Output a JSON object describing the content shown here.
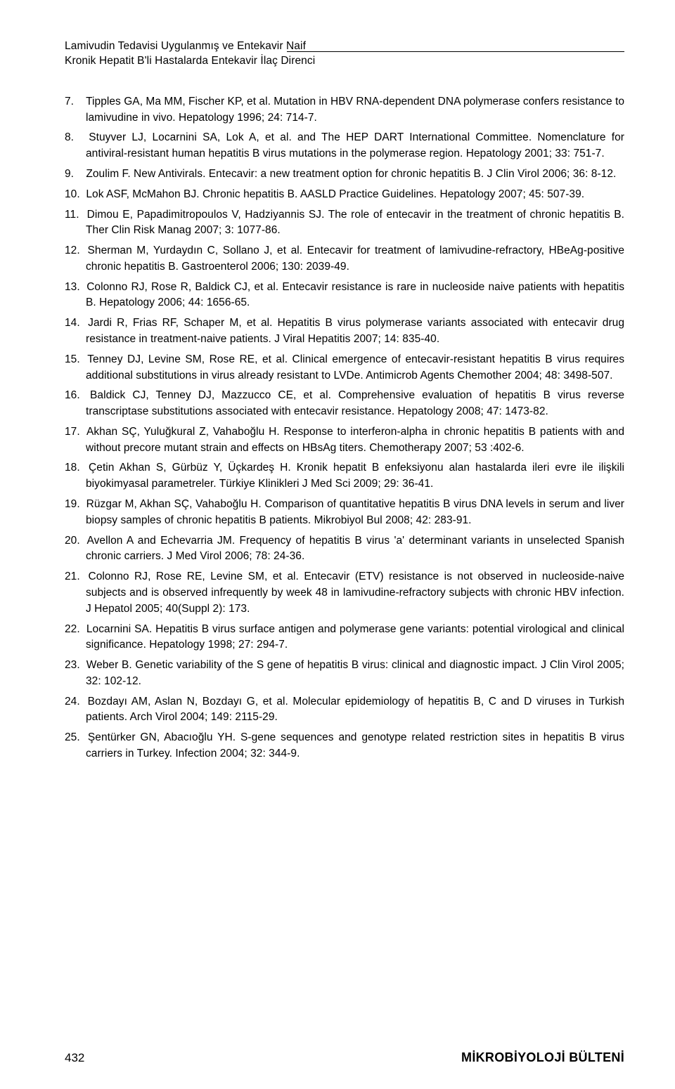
{
  "header": {
    "line1": "Lamivudin Tedavisi Uygulanmış ve Entekavir Naif",
    "line2": "Kronik Hepatit B'li Hastalarda Entekavir İlaç Direnci"
  },
  "refs": [
    {
      "n": "7.",
      "t": "Tipples GA, Ma MM, Fischer KP, et al. Mutation in HBV RNA-dependent DNA polymerase confers resistance to lamivudine in vivo. Hepatology 1996; 24: 714-7."
    },
    {
      "n": "8.",
      "t": "Stuyver LJ, Locarnini SA, Lok A, et al. and The HEP DART International Committee. Nomenclature for antiviral-resistant human hepatitis B virus mutations in the polymerase region. Hepatology 2001; 33: 751-7."
    },
    {
      "n": "9.",
      "t": "Zoulim F. New Antivirals. Entecavir: a new treatment option for chronic hepatitis B. J Clin Virol 2006; 36: 8-12."
    },
    {
      "n": "10.",
      "t": "Lok ASF, McMahon BJ. Chronic hepatitis B. AASLD Practice Guidelines. Hepatology 2007; 45: 507-39."
    },
    {
      "n": "11.",
      "t": "Dimou E, Papadimitropoulos V, Hadziyannis SJ. The role of entecavir in the treatment of chronic hepatitis B. Ther Clin Risk Manag 2007; 3: 1077-86."
    },
    {
      "n": "12.",
      "t": "Sherman M, Yurdaydın C, Sollano J, et al. Entecavir for treatment of lamivudine-refractory, HBeAg-positive chronic hepatitis B. Gastroenterol 2006; 130: 2039-49."
    },
    {
      "n": "13.",
      "t": "Colonno RJ, Rose R, Baldick CJ, et al. Entecavir resistance is rare in nucleoside naive patients with hepatitis B. Hepatology 2006; 44: 1656-65."
    },
    {
      "n": "14.",
      "t": "Jardi R, Frias RF, Schaper M, et al. Hepatitis B virus polymerase variants associated with entecavir drug resistance in treatment-naive patients. J Viral Hepatitis 2007; 14: 835-40."
    },
    {
      "n": "15.",
      "t": "Tenney DJ, Levine SM, Rose RE, et al. Clinical emergence of entecavir-resistant hepatitis B virus requires additional substitutions in virus already resistant to LVDe. Antimicrob Agents Chemother 2004; 48: 3498-507."
    },
    {
      "n": "16.",
      "t": "Baldick CJ, Tenney DJ, Mazzucco CE, et al. Comprehensive evaluation of hepatitis B virus reverse transcriptase substitutions associated with entecavir resistance. Hepatology 2008; 47: 1473-82."
    },
    {
      "n": "17.",
      "t": "Akhan SÇ, Yuluğkural Z, Vahaboğlu H. Response to interferon-alpha in chronic hepatitis B patients with and without precore mutant strain and effects on HBsAg titers. Chemotherapy 2007; 53 :402-6."
    },
    {
      "n": "18.",
      "t": "Çetin Akhan S, Gürbüz Y, Üçkardeş H. Kronik hepatit B enfeksiyonu alan hastalarda ileri evre ile ilişkili biyokimyasal parametreler. Türkiye Klinikleri J Med Sci 2009; 29: 36-41."
    },
    {
      "n": "19.",
      "t": "Rüzgar M, Akhan SÇ, Vahaboğlu H. Comparison of quantitative hepatitis B virus DNA levels in serum and liver biopsy samples of chronic hepatitis B patients. Mikrobiyol Bul 2008; 42: 283-91."
    },
    {
      "n": "20.",
      "t": "Avellon A and Echevarria JM. Frequency of hepatitis B virus 'a' determinant variants in unselected Spanish chronic carriers. J Med Virol 2006; 78: 24-36."
    },
    {
      "n": "21.",
      "t": "Colonno RJ, Rose RE, Levine SM, et al. Entecavir (ETV) resistance is not observed in nucleoside-naive subjects and is observed infrequently by week 48 in lamivudine-refractory subjects with chronic HBV infection. J Hepatol 2005; 40(Suppl 2): 173."
    },
    {
      "n": "22.",
      "t": "Locarnini SA. Hepatitis B virus surface antigen and polymerase gene variants: potential virological and clinical significance. Hepatology 1998; 27: 294-7."
    },
    {
      "n": "23.",
      "t": "Weber B. Genetic variability of the S gene of hepatitis B virus: clinical and diagnostic impact. J Clin Virol 2005; 32: 102-12."
    },
    {
      "n": "24.",
      "t": "Bozdayı AM, Aslan N, Bozdayı G, et al. Molecular epidemiology of hepatitis B, C and D viruses in Turkish patients. Arch Virol 2004; 149: 2115-29."
    },
    {
      "n": "25.",
      "t": "Şentürker GN, Abacıoğlu YH. S-gene sequences and genotype related restriction sites in hepatitis B virus carriers in Turkey. Infection 2004; 32: 344-9."
    }
  ],
  "footer": {
    "page": "432",
    "journal": "MİKROBİYOLOJİ BÜLTENİ"
  }
}
